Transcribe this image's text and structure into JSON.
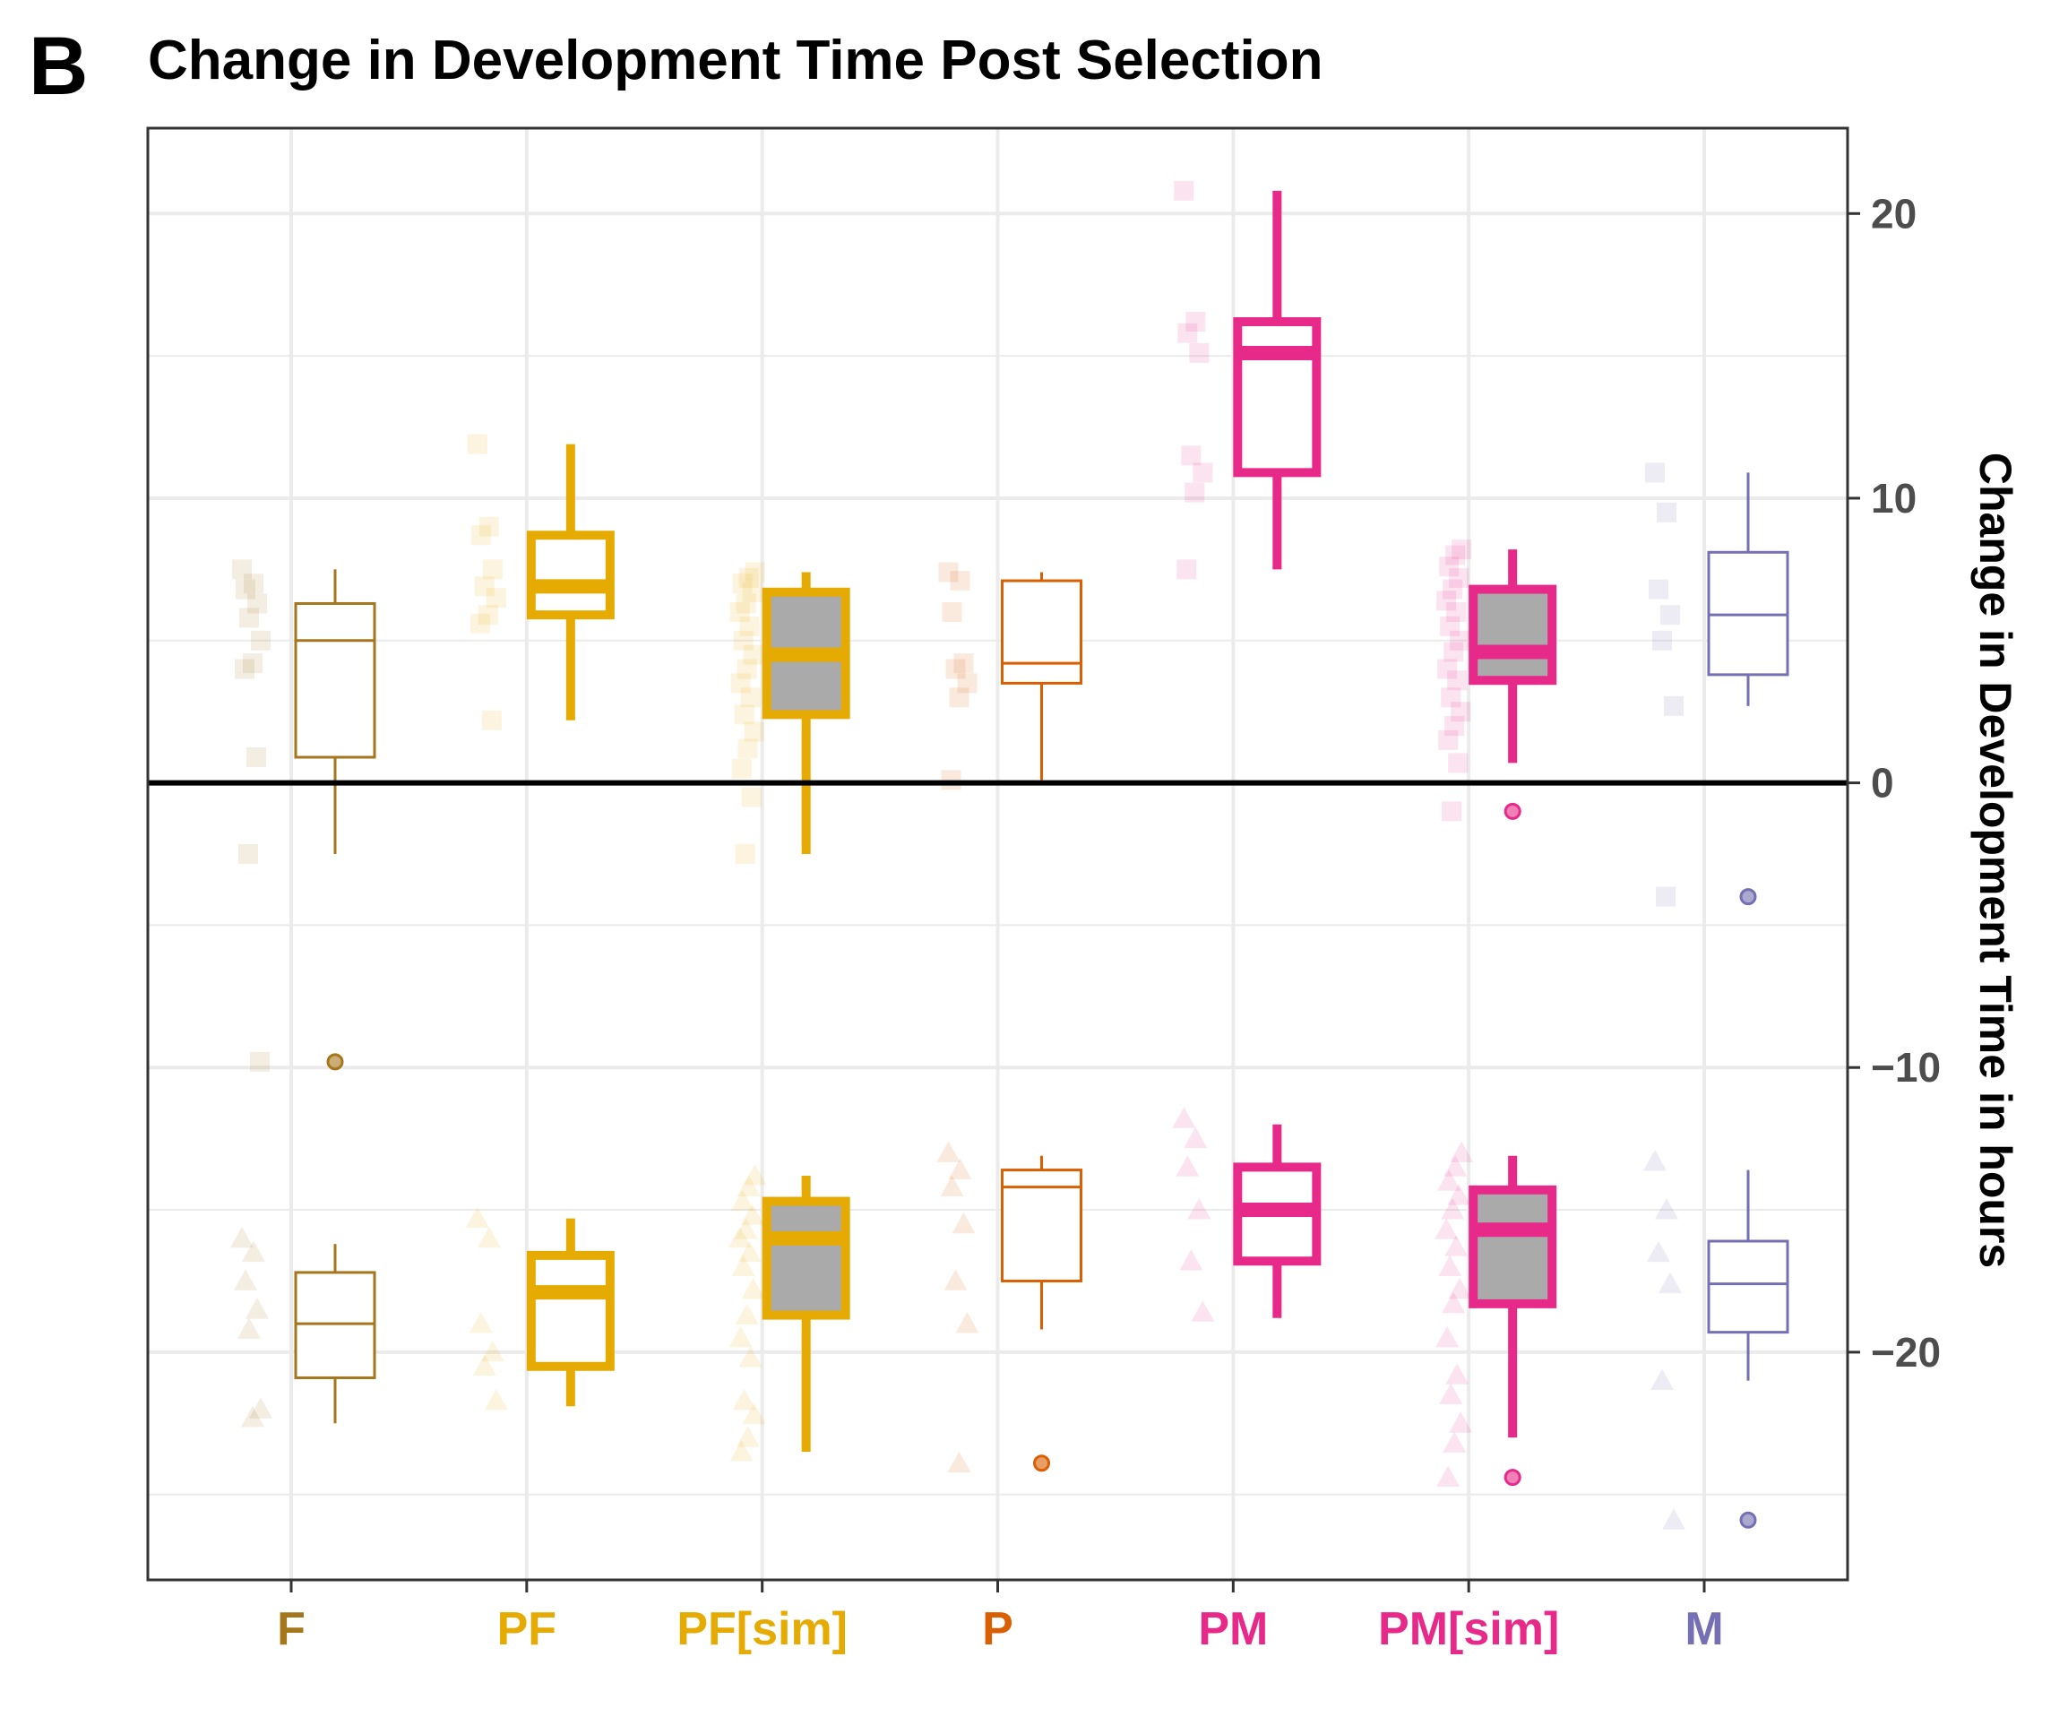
{
  "panel_label": "B",
  "chart_data": {
    "type": "box",
    "title": "Change in Development Time Post Selection",
    "ylabel": "Change in Development Time in hours",
    "xlabel": "",
    "y_axis_position": "right",
    "ylim": [
      -28,
      23
    ],
    "yticks": [
      20,
      10,
      0,
      -10,
      -20
    ],
    "ytick_labels": [
      "20",
      "10",
      "0",
      "−10",
      "−20"
    ],
    "grid": true,
    "reference_line": 0,
    "categories": [
      "F",
      "PF",
      "PF[sim]",
      "P",
      "PM",
      "PM[sim]",
      "M"
    ],
    "category_colors": [
      "#a6761d",
      "#e6ab02",
      "#e6ab02",
      "#d95f02",
      "#e7298a",
      "#e7298a",
      "#7570b3"
    ],
    "series": [
      {
        "group": "positive",
        "points_marker": "square",
        "boxes": [
          {
            "category": "F",
            "whisker_low": -2.5,
            "q1": 0.9,
            "median": 5.0,
            "q3": 6.3,
            "whisker_high": 7.5,
            "filled": false,
            "thick": false,
            "outliers": [
              -9.8
            ],
            "points": [
              7.5,
              7.0,
              6.8,
              6.3,
              5.8,
              5.0,
              4.2,
              4.0,
              0.9,
              -2.5,
              -9.8
            ]
          },
          {
            "category": "PF",
            "whisker_low": 2.2,
            "q1": 5.9,
            "median": 6.9,
            "q3": 8.7,
            "whisker_high": 11.9,
            "filled": false,
            "thick": true,
            "outliers": [],
            "points": [
              11.9,
              9.0,
              8.7,
              7.5,
              6.9,
              6.5,
              5.9,
              5.6,
              2.2
            ]
          },
          {
            "category": "PF[sim]",
            "whisker_low": -2.5,
            "q1": 2.4,
            "median": 4.5,
            "q3": 6.7,
            "whisker_high": 7.4,
            "filled": true,
            "thick": true,
            "outliers": [],
            "points": [
              7.4,
              7.2,
              7.0,
              6.7,
              6.3,
              6.0,
              5.5,
              5.0,
              4.5,
              4.0,
              3.5,
              3.0,
              2.4,
              1.8,
              1.2,
              0.5,
              -0.5,
              -2.5
            ]
          },
          {
            "category": "P",
            "whisker_low": 0.1,
            "q1": 3.5,
            "median": 4.2,
            "q3": 7.1,
            "whisker_high": 7.4,
            "filled": false,
            "thick": false,
            "outliers": [],
            "points": [
              7.4,
              7.1,
              6.0,
              4.2,
              4.0,
              3.5,
              3.0,
              0.1
            ]
          },
          {
            "category": "PM",
            "whisker_low": 7.5,
            "q1": 10.9,
            "median": 15.1,
            "q3": 16.2,
            "whisker_high": 20.8,
            "filled": false,
            "thick": true,
            "outliers": [],
            "points": [
              20.8,
              16.2,
              15.8,
              15.1,
              11.5,
              10.9,
              10.2,
              7.5
            ]
          },
          {
            "category": "PM[sim]",
            "whisker_low": 0.7,
            "q1": 3.6,
            "median": 4.6,
            "q3": 6.8,
            "whisker_high": 8.2,
            "filled": true,
            "thick": true,
            "outliers": [
              -1.0
            ],
            "points": [
              8.2,
              8.0,
              7.6,
              7.2,
              6.8,
              6.4,
              6.0,
              5.5,
              5.0,
              4.6,
              4.0,
              3.6,
              3.0,
              2.5,
              2.0,
              1.5,
              0.7,
              -1.0
            ]
          },
          {
            "category": "M",
            "whisker_low": 2.7,
            "q1": 3.8,
            "median": 5.9,
            "q3": 8.1,
            "whisker_high": 10.9,
            "filled": false,
            "thick": false,
            "outliers": [
              -4.0
            ],
            "points": [
              10.9,
              9.5,
              6.8,
              5.9,
              5.0,
              2.7,
              -4.0
            ]
          }
        ]
      },
      {
        "group": "negative",
        "points_marker": "triangle",
        "boxes": [
          {
            "category": "F",
            "whisker_low": -22.5,
            "q1": -20.9,
            "median": -19.0,
            "q3": -17.2,
            "whisker_high": -16.2,
            "filled": false,
            "thick": false,
            "outliers": [],
            "points": [
              -16.0,
              -16.5,
              -17.5,
              -18.5,
              -19.2,
              -22.0,
              -22.3
            ]
          },
          {
            "category": "PF",
            "whisker_low": -21.9,
            "q1": -20.5,
            "median": -17.9,
            "q3": -16.6,
            "whisker_high": -15.3,
            "filled": false,
            "thick": true,
            "outliers": [],
            "points": [
              -15.3,
              -16.0,
              -19.0,
              -20.0,
              -20.5,
              -21.7
            ]
          },
          {
            "category": "PF[sim]",
            "whisker_low": -23.5,
            "q1": -18.7,
            "median": -16.0,
            "q3": -14.7,
            "whisker_high": -13.8,
            "filled": true,
            "thick": true,
            "outliers": [],
            "points": [
              -13.8,
              -14.2,
              -14.7,
              -15.2,
              -15.7,
              -16.0,
              -16.5,
              -17.0,
              -17.8,
              -18.7,
              -19.5,
              -20.2,
              -21.7,
              -22.2,
              -23.0,
              -23.5
            ]
          },
          {
            "category": "P",
            "whisker_low": -19.2,
            "q1": -17.5,
            "median": -14.2,
            "q3": -13.6,
            "whisker_high": -13.1,
            "filled": false,
            "thick": false,
            "outliers": [
              -23.9
            ],
            "points": [
              -13.0,
              -13.6,
              -14.2,
              -15.5,
              -17.5,
              -19.0,
              -23.9
            ]
          },
          {
            "category": "PM",
            "whisker_low": -18.8,
            "q1": -16.8,
            "median": -15.0,
            "q3": -13.5,
            "whisker_high": -12.0,
            "filled": false,
            "thick": true,
            "outliers": [],
            "points": [
              -11.8,
              -12.5,
              -13.5,
              -15.0,
              -16.8,
              -18.6
            ]
          },
          {
            "category": "PM[sim]",
            "whisker_low": -23.0,
            "q1": -18.3,
            "median": -15.7,
            "q3": -14.3,
            "whisker_high": -13.1,
            "filled": true,
            "thick": true,
            "outliers": [
              -24.4
            ],
            "points": [
              -13.0,
              -13.5,
              -14.0,
              -14.5,
              -15.0,
              -15.7,
              -16.3,
              -17.0,
              -17.8,
              -18.3,
              -19.5,
              -20.8,
              -21.5,
              -22.5,
              -23.2,
              -24.4
            ]
          },
          {
            "category": "M",
            "whisker_low": -21.0,
            "q1": -19.3,
            "median": -17.6,
            "q3": -16.1,
            "whisker_high": -13.6,
            "filled": false,
            "thick": false,
            "outliers": [
              -25.9
            ],
            "points": [
              -13.3,
              -15.0,
              -16.5,
              -17.6,
              -21.0,
              -25.9
            ]
          }
        ]
      }
    ]
  }
}
